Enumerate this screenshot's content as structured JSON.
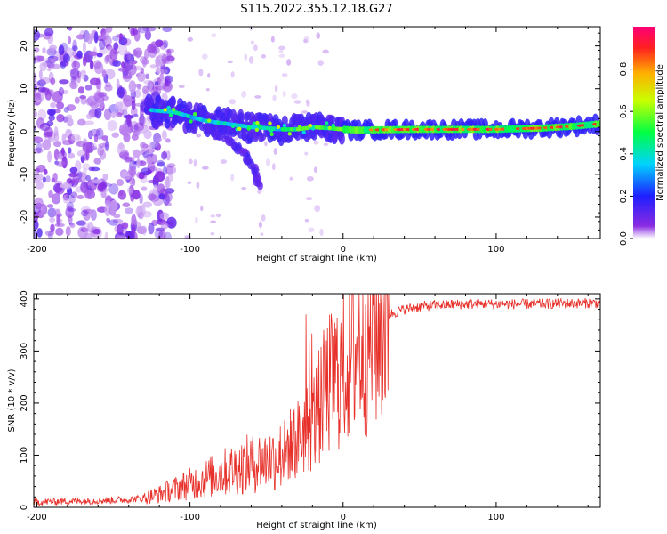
{
  "title": "S115.2022.355.12.18.G27",
  "colors": {
    "snr_line": "#e8302a",
    "axis": "#000000"
  },
  "chart_data": [
    {
      "type": "heatmap",
      "xlabel": "Height of straight line (km)",
      "ylabel": "Frequency (Hz)",
      "xlim": [
        -202,
        168
      ],
      "ylim": [
        -25,
        24.5
      ],
      "xticks": [
        -200,
        -100,
        0,
        100
      ],
      "yticks": [
        -20,
        -10,
        0,
        10,
        20
      ],
      "colorbar": {
        "label": "Normalized spectral amplitude",
        "range": [
          0,
          1
        ],
        "ticks": [
          0.0,
          0.2,
          0.4,
          0.6,
          0.8
        ],
        "tick_labels": [
          "0.0",
          "0.2",
          "0.4",
          "0.6",
          "0.8"
        ],
        "colormap": "rainbow"
      },
      "frequency_trace": [
        {
          "x": -125,
          "y": 5
        },
        {
          "x": -110,
          "y": 4.5
        },
        {
          "x": -100,
          "y": 3.5
        },
        {
          "x": -90,
          "y": 2.5
        },
        {
          "x": -80,
          "y": 2
        },
        {
          "x": -70,
          "y": 1.5
        },
        {
          "x": -60,
          "y": 1
        },
        {
          "x": -50,
          "y": 0.8
        },
        {
          "x": -40,
          "y": 0.5
        },
        {
          "x": -30,
          "y": 0.5
        },
        {
          "x": -20,
          "y": 1
        },
        {
          "x": -10,
          "y": 0.8
        },
        {
          "x": 0,
          "y": 0.5
        },
        {
          "x": 10,
          "y": 0.3
        },
        {
          "x": 20,
          "y": 0.4
        },
        {
          "x": 50,
          "y": 0.5
        },
        {
          "x": 80,
          "y": 0.5
        },
        {
          "x": 100,
          "y": 0.5
        },
        {
          "x": 130,
          "y": 0.8
        },
        {
          "x": 150,
          "y": 1.2
        },
        {
          "x": 168,
          "y": 1.8
        }
      ],
      "secondary_branch": [
        {
          "x": -90,
          "y": 1
        },
        {
          "x": -75,
          "y": -2
        },
        {
          "x": -65,
          "y": -5
        },
        {
          "x": -58,
          "y": -9
        },
        {
          "x": -55,
          "y": -13
        }
      ]
    },
    {
      "type": "line",
      "xlabel": "Height of straight line (km)",
      "ylabel": "SNR (10 * v/v)",
      "xlim": [
        -202,
        168
      ],
      "ylim": [
        0,
        410
      ],
      "xticks": [
        -200,
        -100,
        0,
        100
      ],
      "yticks": [
        0,
        100,
        200,
        300,
        400
      ],
      "series": [
        {
          "color": "#e8302a",
          "x": [
            -202,
            -180,
            -160,
            -140,
            -130,
            -120,
            -110,
            -100,
            -90,
            -80,
            -70,
            -60,
            -50,
            -40,
            -35,
            -30,
            -25,
            -20,
            -15,
            -10,
            -5,
            0,
            5,
            10,
            15,
            20,
            25,
            30,
            40,
            50,
            60,
            80,
            100,
            120,
            140,
            168
          ],
          "y": [
            10,
            12,
            13,
            15,
            18,
            25,
            35,
            45,
            55,
            65,
            75,
            85,
            90,
            100,
            120,
            130,
            150,
            160,
            200,
            230,
            250,
            270,
            290,
            310,
            320,
            340,
            360,
            370,
            380,
            385,
            388,
            390,
            390,
            390,
            391,
            392
          ]
        }
      ]
    }
  ]
}
